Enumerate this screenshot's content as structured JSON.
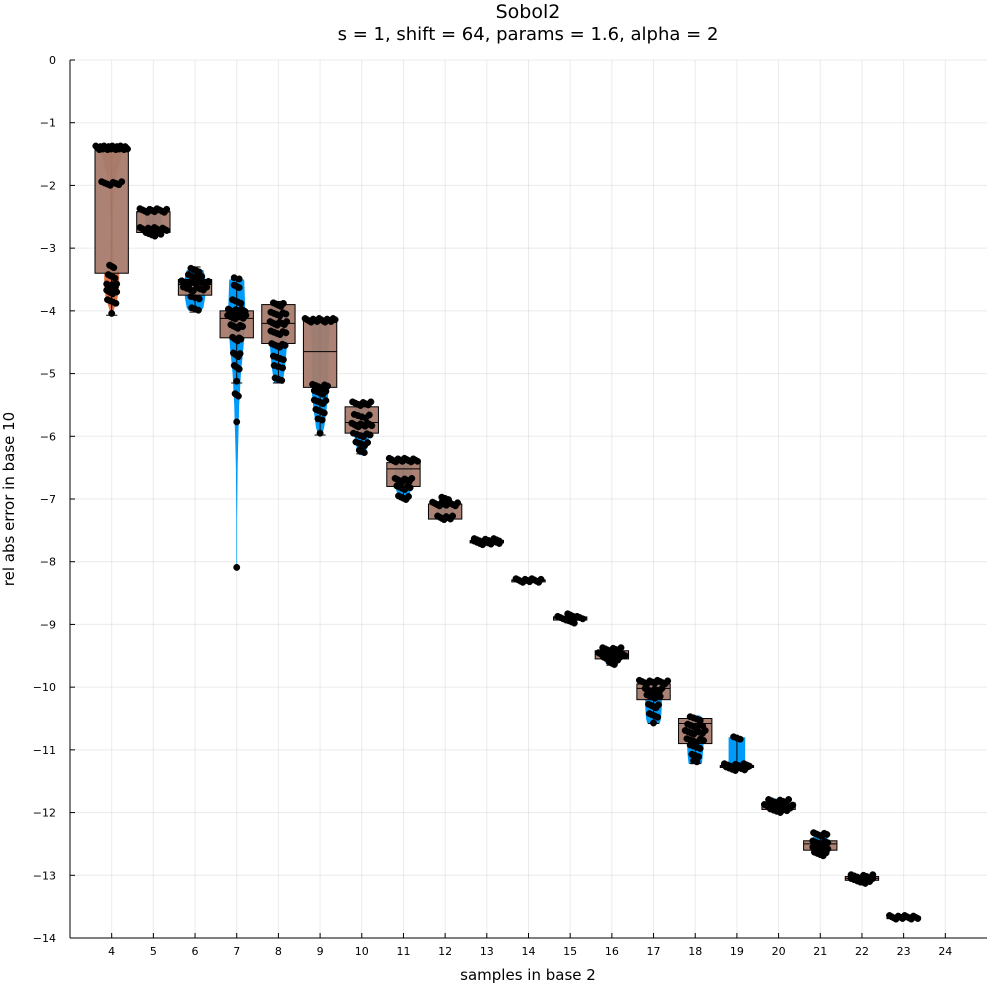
{
  "chart_data": {
    "type": "violin-box-scatter",
    "title": "Sobol2",
    "subtitle": "s = 1, shift = 64, params = 1.6, alpha = 2",
    "xlabel": "samples in base 2",
    "ylabel": "rel abs error in base 10",
    "xlim": [
      3.0,
      25.0
    ],
    "ylim": [
      -14,
      0
    ],
    "x_ticks": [
      4,
      5,
      6,
      7,
      8,
      9,
      10,
      11,
      12,
      13,
      14,
      15,
      16,
      17,
      18,
      19,
      20,
      21,
      22,
      23,
      24
    ],
    "y_ticks": [
      0,
      -1,
      -2,
      -3,
      -4,
      -5,
      -6,
      -7,
      -8,
      -9,
      -10,
      -11,
      -12,
      -13,
      -14
    ],
    "grid": true,
    "legend": "none",
    "colors": {
      "violin": "#009af9",
      "violin_n4": "#e26f46",
      "box": "#a67b6b",
      "dots": "#000000"
    },
    "groups": [
      {
        "x": 4,
        "violin": [
          [
            -1.38,
            0.24
          ],
          [
            -1.5,
            0.25
          ],
          [
            -2.0,
            0.05
          ],
          [
            -2.6,
            0.03
          ],
          [
            -3.2,
            0.04
          ],
          [
            -3.4,
            0.18
          ],
          [
            -3.6,
            0.18
          ],
          [
            -3.8,
            0.14
          ],
          [
            -4.05,
            0.02
          ]
        ],
        "box": {
          "q1": -3.4,
          "median": -1.43,
          "q3": -1.43,
          "wlo": -4.07,
          "whi": -1.38
        },
        "clusters": [
          [
            -1.4,
            28,
            0.38
          ],
          [
            -1.97,
            8,
            0.24
          ],
          [
            -3.3,
            3,
            0.05
          ],
          [
            -3.45,
            4,
            0.08
          ],
          [
            -3.6,
            8,
            0.12
          ],
          [
            -3.7,
            6,
            0.12
          ],
          [
            -3.85,
            4,
            0.1
          ],
          [
            -4.07,
            1,
            0
          ]
        ]
      },
      {
        "x": 5,
        "violin": [
          [
            -2.38,
            0.18
          ],
          [
            -2.45,
            0.2
          ],
          [
            -2.6,
            0.2
          ],
          [
            -2.7,
            0.2
          ],
          [
            -2.78,
            0.18
          ]
        ],
        "box": {
          "q1": -2.75,
          "median": -2.42,
          "q3": -2.42,
          "wlo": -2.8,
          "whi": -2.38
        },
        "clusters": [
          [
            -2.4,
            12,
            0.32
          ],
          [
            -2.7,
            14,
            0.32
          ],
          [
            -2.78,
            6,
            0.18
          ]
        ]
      },
      {
        "x": 6,
        "violin": [
          [
            -3.35,
            0.2
          ],
          [
            -3.45,
            0.24
          ],
          [
            -3.6,
            0.26
          ],
          [
            -3.8,
            0.24
          ],
          [
            -3.95,
            0.2
          ],
          [
            -4.0,
            0.15
          ]
        ],
        "box": {
          "q1": -3.75,
          "median": -3.58,
          "q3": -3.5,
          "wlo": -4.02,
          "whi": -3.3
        },
        "clusters": [
          [
            -3.35,
            4,
            0.1
          ],
          [
            -3.45,
            6,
            0.16
          ],
          [
            -3.55,
            12,
            0.32
          ],
          [
            -3.65,
            8,
            0.28
          ],
          [
            -3.8,
            3,
            0.1
          ],
          [
            -3.98,
            3,
            0.08
          ]
        ]
      },
      {
        "x": 7,
        "violin": [
          [
            -3.5,
            0.18
          ],
          [
            -3.9,
            0.2
          ],
          [
            -4.2,
            0.2
          ],
          [
            -4.6,
            0.16
          ],
          [
            -5.0,
            0.1
          ],
          [
            -5.5,
            0.06
          ],
          [
            -6.0,
            0.04
          ],
          [
            -6.5,
            0.02
          ],
          [
            -7.3,
            0.01
          ],
          [
            -8.05,
            0.008
          ]
        ],
        "box": {
          "q1": -4.43,
          "median": -4.12,
          "q3": -4.0,
          "wlo": -5.15,
          "whi": -3.5
        },
        "clusters": [
          [
            -3.5,
            2,
            0.06
          ],
          [
            -3.62,
            3,
            0.06
          ],
          [
            -3.85,
            4,
            0.1
          ],
          [
            -4.0,
            10,
            0.2
          ],
          [
            -4.1,
            8,
            0.22
          ],
          [
            -4.25,
            6,
            0.14
          ],
          [
            -4.45,
            6,
            0.1
          ],
          [
            -4.7,
            5,
            0.08
          ],
          [
            -4.9,
            4,
            0.06
          ],
          [
            -5.15,
            1,
            0
          ],
          [
            -5.35,
            3,
            0.04
          ],
          [
            -5.8,
            1,
            0
          ],
          [
            -8.12,
            1,
            0
          ]
        ]
      },
      {
        "x": 8,
        "violin": [
          [
            -3.88,
            0.15
          ],
          [
            -4.1,
            0.2
          ],
          [
            -4.3,
            0.22
          ],
          [
            -4.6,
            0.2
          ],
          [
            -4.9,
            0.16
          ],
          [
            -5.15,
            0.1
          ]
        ],
        "box": {
          "q1": -4.52,
          "median": -4.2,
          "q3": -3.9,
          "wlo": -5.15,
          "whi": -3.85
        },
        "clusters": [
          [
            -3.9,
            5,
            0.12
          ],
          [
            -4.05,
            6,
            0.18
          ],
          [
            -4.2,
            8,
            0.2
          ],
          [
            -4.35,
            6,
            0.18
          ],
          [
            -4.55,
            6,
            0.16
          ],
          [
            -4.75,
            4,
            0.12
          ],
          [
            -4.9,
            3,
            0.1
          ],
          [
            -5.1,
            3,
            0.08
          ]
        ]
      },
      {
        "x": 9,
        "violin": [
          [
            -4.15,
            0.24
          ],
          [
            -4.6,
            0.2
          ],
          [
            -5.0,
            0.2
          ],
          [
            -5.3,
            0.2
          ],
          [
            -5.6,
            0.15
          ],
          [
            -5.85,
            0.1
          ],
          [
            -6.0,
            0.04
          ]
        ],
        "box": {
          "q1": -5.22,
          "median": -4.65,
          "q3": -4.15,
          "wlo": -5.98,
          "whi": -4.13
        },
        "clusters": [
          [
            -4.15,
            16,
            0.36
          ],
          [
            -5.2,
            6,
            0.18
          ],
          [
            -5.3,
            5,
            0.14
          ],
          [
            -5.45,
            5,
            0.14
          ],
          [
            -5.6,
            4,
            0.1
          ],
          [
            -5.75,
            2,
            0.05
          ],
          [
            -5.98,
            1,
            0
          ]
        ]
      },
      {
        "x": 10,
        "violin": [
          [
            -5.45,
            0.12
          ],
          [
            -5.6,
            0.18
          ],
          [
            -5.8,
            0.2
          ],
          [
            -6.0,
            0.18
          ],
          [
            -6.2,
            0.12
          ],
          [
            -6.3,
            0.06
          ]
        ],
        "box": {
          "q1": -5.95,
          "median": -5.78,
          "q3": -5.53,
          "wlo": -6.28,
          "whi": -5.45
        },
        "clusters": [
          [
            -5.48,
            8,
            0.22
          ],
          [
            -5.68,
            5,
            0.18
          ],
          [
            -5.82,
            10,
            0.24
          ],
          [
            -5.98,
            6,
            0.2
          ],
          [
            -6.12,
            5,
            0.14
          ],
          [
            -6.25,
            3,
            0.06
          ]
        ]
      },
      {
        "x": 11,
        "violin": [
          [
            -6.35,
            0.18
          ],
          [
            -6.5,
            0.2
          ],
          [
            -6.7,
            0.2
          ],
          [
            -6.85,
            0.18
          ],
          [
            -6.98,
            0.12
          ]
        ],
        "box": {
          "q1": -6.8,
          "median": -6.52,
          "q3": -6.42,
          "wlo": -6.98,
          "whi": -6.35
        },
        "clusters": [
          [
            -6.38,
            14,
            0.34
          ],
          [
            -6.7,
            8,
            0.2
          ],
          [
            -6.82,
            6,
            0.16
          ],
          [
            -6.98,
            5,
            0.12
          ]
        ]
      },
      {
        "x": 12,
        "violin": [
          [
            -6.98,
            0.12
          ],
          [
            -7.1,
            0.2
          ],
          [
            -7.2,
            0.2
          ],
          [
            -7.32,
            0.14
          ]
        ],
        "box": {
          "q1": -7.32,
          "median": -7.08,
          "q3": -7.08,
          "wlo": -7.33,
          "whi": -6.98
        },
        "clusters": [
          [
            -7.0,
            3,
            0.08
          ],
          [
            -7.08,
            12,
            0.3
          ],
          [
            -7.3,
            8,
            0.18
          ]
        ]
      },
      {
        "x": 13,
        "violin": [
          [
            -7.63,
            0.16
          ],
          [
            -7.68,
            0.2
          ],
          [
            -7.74,
            0.16
          ]
        ],
        "box": {
          "q1": -7.7,
          "median": -7.68,
          "q3": -7.66,
          "wlo": -7.73,
          "whi": -7.64
        },
        "clusters": [
          [
            -7.66,
            10,
            0.3
          ],
          [
            -7.7,
            10,
            0.3
          ]
        ]
      },
      {
        "x": 14,
        "violin": [
          [
            -8.27,
            0.16
          ],
          [
            -8.3,
            0.2
          ],
          [
            -8.33,
            0.16
          ]
        ],
        "box": {
          "q1": -8.31,
          "median": -8.3,
          "q3": -8.29,
          "wlo": -8.32,
          "whi": -8.28
        },
        "clusters": [
          [
            -8.3,
            12,
            0.3
          ]
        ]
      },
      {
        "x": 15,
        "violin": [
          [
            -8.82,
            0.04
          ],
          [
            -8.86,
            0.12
          ],
          [
            -8.92,
            0.18
          ],
          [
            -8.96,
            0.1
          ],
          [
            -9.0,
            0.03
          ]
        ],
        "box": {
          "q1": -8.93,
          "median": -8.9,
          "q3": -8.88,
          "wlo": -8.97,
          "whi": -8.84
        },
        "clusters": [
          [
            -8.86,
            3,
            0.06
          ],
          [
            -8.9,
            10,
            0.3
          ],
          [
            -8.95,
            4,
            0.1
          ]
        ]
      },
      {
        "x": 16,
        "violin": [
          [
            -9.38,
            0.12
          ],
          [
            -9.45,
            0.2
          ],
          [
            -9.55,
            0.2
          ],
          [
            -9.63,
            0.14
          ]
        ],
        "box": {
          "q1": -9.55,
          "median": -9.48,
          "q3": -9.42,
          "wlo": -9.65,
          "whi": -9.38
        },
        "clusters": [
          [
            -9.4,
            8,
            0.22
          ],
          [
            -9.48,
            14,
            0.32
          ],
          [
            -9.55,
            8,
            0.2
          ],
          [
            -9.63,
            3,
            0.06
          ]
        ]
      },
      {
        "x": 17,
        "violin": [
          [
            -9.9,
            0.2
          ],
          [
            -10.1,
            0.2
          ],
          [
            -10.3,
            0.2
          ],
          [
            -10.5,
            0.18
          ],
          [
            -10.58,
            0.15
          ]
        ],
        "box": {
          "q1": -10.2,
          "median": -10.02,
          "q3": -9.95,
          "wlo": -10.58,
          "whi": -9.9
        },
        "clusters": [
          [
            -9.92,
            12,
            0.34
          ],
          [
            -10.05,
            8,
            0.2
          ],
          [
            -10.15,
            6,
            0.16
          ],
          [
            -10.3,
            5,
            0.12
          ],
          [
            -10.45,
            4,
            0.1
          ],
          [
            -10.6,
            1,
            0
          ]
        ]
      },
      {
        "x": 18,
        "violin": [
          [
            -10.45,
            0.1
          ],
          [
            -10.5,
            0.2
          ],
          [
            -10.7,
            0.22
          ],
          [
            -10.9,
            0.2
          ],
          [
            -11.1,
            0.18
          ],
          [
            -11.22,
            0.16
          ]
        ],
        "box": {
          "q1": -10.9,
          "median": -10.58,
          "q3": -10.5,
          "wlo": -11.22,
          "whi": -10.48
        },
        "clusters": [
          [
            -10.5,
            4,
            0.12
          ],
          [
            -10.62,
            6,
            0.18
          ],
          [
            -10.72,
            8,
            0.24
          ],
          [
            -10.85,
            6,
            0.2
          ],
          [
            -10.95,
            4,
            0.12
          ],
          [
            -11.1,
            3,
            0.08
          ],
          [
            -11.2,
            2,
            0.04
          ]
        ]
      },
      {
        "x": 19,
        "violin": [
          [
            -10.8,
            0.2
          ],
          [
            -11.0,
            0.2
          ],
          [
            -11.2,
            0.2
          ],
          [
            -11.3,
            0.2
          ]
        ],
        "box": {
          "q1": -11.28,
          "median": -11.27,
          "q3": -11.25,
          "wlo": -11.3,
          "whi": -10.8
        },
        "clusters": [
          [
            -10.82,
            3,
            0.08
          ],
          [
            -11.25,
            10,
            0.3
          ],
          [
            -11.3,
            8,
            0.26
          ]
        ]
      },
      {
        "x": 20,
        "violin": [
          [
            -11.78,
            0.14
          ],
          [
            -11.85,
            0.2
          ],
          [
            -11.95,
            0.2
          ],
          [
            -12.02,
            0.12
          ]
        ],
        "box": {
          "q1": -11.95,
          "median": -11.9,
          "q3": -11.85,
          "wlo": -12.0,
          "whi": -11.8
        },
        "clusters": [
          [
            -11.82,
            8,
            0.24
          ],
          [
            -11.9,
            12,
            0.34
          ],
          [
            -11.97,
            6,
            0.2
          ]
        ]
      },
      {
        "x": 21,
        "violin": [
          [
            -12.32,
            0.16
          ],
          [
            -12.45,
            0.18
          ],
          [
            -12.55,
            0.2
          ],
          [
            -12.68,
            0.14
          ]
        ],
        "box": {
          "q1": -12.6,
          "median": -12.5,
          "q3": -12.45,
          "wlo": -12.68,
          "whi": -12.33
        },
        "clusters": [
          [
            -12.35,
            6,
            0.16
          ],
          [
            -12.48,
            6,
            0.18
          ],
          [
            -12.58,
            6,
            0.18
          ],
          [
            -12.66,
            5,
            0.14
          ]
        ]
      },
      {
        "x": 22,
        "violin": [
          [
            -13.0,
            0.16
          ],
          [
            -13.05,
            0.2
          ],
          [
            -13.12,
            0.16
          ]
        ],
        "box": {
          "q1": -13.08,
          "median": -13.05,
          "q3": -13.02,
          "wlo": -13.12,
          "whi": -13.0
        },
        "clusters": [
          [
            -13.02,
            8,
            0.26
          ],
          [
            -13.08,
            8,
            0.26
          ],
          [
            -13.12,
            3,
            0.08
          ]
        ]
      },
      {
        "x": 23,
        "violin": [
          [
            -13.62,
            0.18
          ],
          [
            -13.67,
            0.22
          ],
          [
            -13.72,
            0.18
          ]
        ],
        "box": {
          "q1": -13.68,
          "median": -13.67,
          "q3": -13.66,
          "wlo": -13.7,
          "whi": -13.64
        },
        "clusters": [
          [
            -13.67,
            14,
            0.34
          ]
        ]
      }
    ]
  }
}
